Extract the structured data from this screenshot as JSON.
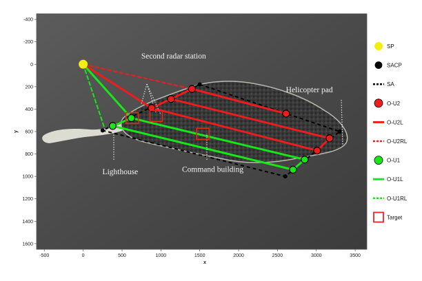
{
  "chart_data": {
    "type": "scatter",
    "xlabel": "x",
    "ylabel": "y",
    "xlim": [
      -600,
      3650
    ],
    "ylim": [
      -450,
      1650
    ],
    "y_inverted": true,
    "xticks": [
      -500,
      0,
      500,
      1000,
      1500,
      2000,
      2500,
      3000,
      3500
    ],
    "yticks": [
      -400,
      -200,
      0,
      200,
      400,
      600,
      800,
      1000,
      1200,
      1400,
      1600
    ],
    "background": "grayscale aerial photograph of an island",
    "legend_position": "right",
    "colors": {
      "sp": "#f2ee10",
      "sacp": "#000000",
      "red": "#ee1c1c",
      "green": "#19e619",
      "target": "#e8261e"
    },
    "series": [
      {
        "name": "SP",
        "marker": "circle",
        "color": "#f2ee10",
        "points": [
          [
            0,
            0
          ]
        ]
      },
      {
        "name": "SACP",
        "marker": "circle",
        "color": "#000000",
        "points": [
          [
            1500,
            180
          ],
          [
            3300,
            600
          ],
          [
            2600,
            1000
          ],
          [
            250,
            590
          ]
        ]
      },
      {
        "name": "SA",
        "style": "dashed",
        "color": "#000000",
        "path": [
          [
            1500,
            180
          ],
          [
            3300,
            600
          ],
          [
            2600,
            1000
          ],
          [
            250,
            590
          ],
          [
            1500,
            180
          ]
        ]
      },
      {
        "name": "O-U2",
        "marker": "circle",
        "color": "#ee1c1c",
        "points": [
          [
            1400,
            220
          ],
          [
            1130,
            310
          ],
          [
            880,
            390
          ],
          [
            2610,
            440
          ],
          [
            3170,
            660
          ],
          [
            3010,
            770
          ]
        ]
      },
      {
        "name": "O-U2L",
        "style": "solid",
        "color": "#ee1c1c",
        "segments": [
          [
            [
              0,
              0
            ],
            [
              880,
              390
            ]
          ],
          [
            [
              880,
              390
            ],
            [
              1400,
              220
            ]
          ],
          [
            [
              1400,
              220
            ],
            [
              2610,
              440
            ]
          ],
          [
            [
              1130,
              310
            ],
            [
              3170,
              660
            ]
          ],
          [
            [
              880,
              390
            ],
            [
              3010,
              770
            ]
          ],
          [
            [
              3010,
              770
            ],
            [
              3170,
              660
            ]
          ]
        ]
      },
      {
        "name": "O-U2RL",
        "style": "dashed",
        "color": "#ee1c1c",
        "segments": [
          [
            [
              0,
              0
            ],
            [
              1400,
              220
            ]
          ]
        ]
      },
      {
        "name": "O-U1",
        "marker": "circle",
        "color": "#19e619",
        "points": [
          [
            380,
            550
          ],
          [
            620,
            480
          ],
          [
            2850,
            850
          ],
          [
            2700,
            940
          ]
        ]
      },
      {
        "name": "O-U1L",
        "style": "solid",
        "color": "#19e619",
        "segments": [
          [
            [
              0,
              0
            ],
            [
              620,
              480
            ]
          ],
          [
            [
              380,
              550
            ],
            [
              2700,
              940
            ]
          ],
          [
            [
              620,
              480
            ],
            [
              2850,
              850
            ]
          ],
          [
            [
              2700,
              940
            ],
            [
              2850,
              850
            ]
          ],
          [
            [
              380,
              550
            ],
            [
              620,
              480
            ]
          ]
        ]
      },
      {
        "name": "O-U1RL",
        "style": "dashed",
        "color": "#19e619",
        "segments": [
          [
            [
              0,
              0
            ],
            [
              270,
              560
            ]
          ]
        ]
      },
      {
        "name": "Target",
        "marker": "square",
        "color": "#e8261e",
        "points": [
          [
            630,
            480
          ],
          [
            940,
            460
          ],
          [
            1540,
            620
          ]
        ]
      }
    ],
    "annotations": [
      {
        "text": "Second radar station",
        "x": 720,
        "y": -50
      },
      {
        "text": "Helicopter pad",
        "x": 2600,
        "y": 250
      },
      {
        "text": "Lighthouse",
        "x": 300,
        "y": 980
      },
      {
        "text": "Command building",
        "x": 1490,
        "y": 960
      }
    ]
  }
}
